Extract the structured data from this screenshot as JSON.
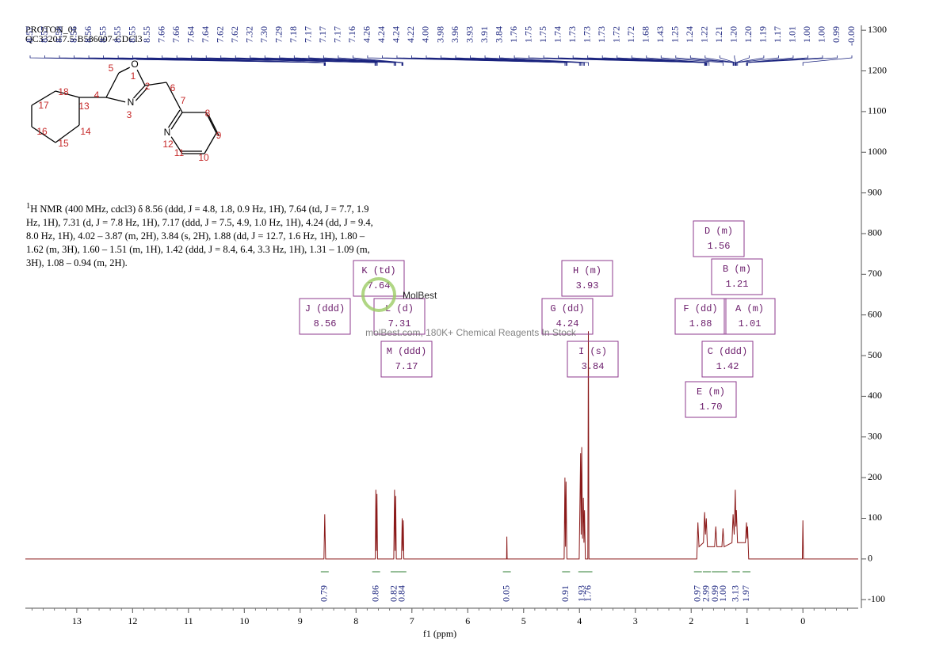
{
  "header": {
    "experiment": "PROTON_01",
    "sample": "QC332017.5-B586007-CDCl3"
  },
  "description": {
    "superscript": "1",
    "text": "H NMR (400 MHz, cdcl3) δ 8.56 (ddd, J = 4.8, 1.8, 0.9 Hz, 1H), 7.64 (td, J = 7.7, 1.9 Hz, 1H), 7.31 (d, J = 7.8 Hz, 1H), 7.17 (ddd, J = 7.5, 4.9, 1.0 Hz, 1H), 4.24 (dd, J = 9.4, 8.0 Hz, 1H), 4.02 – 3.87 (m, 2H), 3.84 (s, 2H), 1.88 (dd, J = 12.7, 1.6 Hz, 1H), 1.80 – 1.62 (m, 3H), 1.60 – 1.51 (m, 1H), 1.42 (ddd, J = 8.4, 6.4, 3.3 Hz, 1H), 1.31 – 1.09 (m, 3H), 1.08 – 0.94 (m, 2H)."
  },
  "watermark": {
    "brand": "MolBest",
    "tagline": "molBest.com, 180K+ Chemical Reagents In Stock"
  },
  "molecule": {
    "atoms": [
      "O",
      "N",
      "N"
    ],
    "numbers": [
      "1",
      "2",
      "3",
      "4",
      "5",
      "6",
      "7",
      "8",
      "9",
      "10",
      "11",
      "12",
      "13",
      "14",
      "15",
      "16",
      "17",
      "18"
    ]
  },
  "chart_data": {
    "type": "line",
    "x_label": "f1 (ppm)",
    "xlim": [
      13.92,
      -0.99
    ],
    "ylim": [
      -121,
      1312
    ],
    "xticks": [
      13,
      12,
      11,
      10,
      9,
      8,
      7,
      6,
      5,
      4,
      3,
      2,
      1,
      0
    ],
    "yticks": [
      -100,
      0,
      100,
      200,
      300,
      400,
      500,
      600,
      700,
      800,
      900,
      1000,
      1100,
      1200,
      1300
    ],
    "series": [
      {
        "color": "#8b1a1a",
        "x": [
          13.92,
          8.575,
          8.56,
          8.545,
          7.655,
          7.645,
          7.635,
          7.625,
          7.615,
          7.325,
          7.31,
          7.3,
          7.29,
          7.28,
          7.185,
          7.175,
          7.165,
          7.155,
          7.145,
          5.305,
          5.3,
          5.295,
          4.275,
          4.26,
          4.25,
          4.24,
          4.225,
          4.005,
          3.98,
          3.97,
          3.96,
          3.945,
          3.93,
          3.92,
          3.91,
          3.895,
          3.85,
          3.84,
          3.83,
          1.9,
          1.88,
          1.86,
          1.78,
          1.76,
          1.745,
          1.73,
          1.71,
          1.58,
          1.56,
          1.54,
          1.45,
          1.43,
          1.41,
          1.27,
          1.25,
          1.23,
          1.21,
          1.2,
          1.19,
          1.17,
          1.03,
          1.01,
          1.0,
          0.99,
          0.97,
          0.01,
          0,
          -0.01,
          -0.99
        ],
        "values": [
          0,
          0,
          110,
          0,
          0,
          170,
          20,
          160,
          0,
          0,
          170,
          20,
          155,
          0,
          0,
          100,
          20,
          95,
          0,
          0,
          55,
          0,
          0,
          200,
          30,
          190,
          0,
          0,
          260,
          60,
          275,
          50,
          150,
          40,
          120,
          0,
          0,
          560,
          0,
          0,
          90,
          30,
          40,
          115,
          60,
          100,
          30,
          30,
          80,
          30,
          30,
          75,
          30,
          40,
          110,
          60,
          170,
          80,
          120,
          40,
          40,
          90,
          50,
          80,
          0,
          0,
          95,
          0,
          0
        ]
      }
    ],
    "peak_labels": [
      "8.57",
      "8.57",
      "8.56",
      "8.56",
      "8.56",
      "8.55",
      "8.55",
      "8.55",
      "8.55",
      "7.66",
      "7.66",
      "7.64",
      "7.64",
      "7.62",
      "7.62",
      "7.32",
      "7.30",
      "7.29",
      "7.18",
      "7.17",
      "7.17",
      "7.17",
      "7.16",
      "4.26",
      "4.24",
      "4.24",
      "4.22",
      "4.00",
      "3.98",
      "3.96",
      "3.93",
      "3.91",
      "3.84",
      "1.76",
      "1.75",
      "1.75",
      "1.74",
      "1.73",
      "1.73",
      "1.73",
      "1.72",
      "1.72",
      "1.68",
      "1.43",
      "1.25",
      "1.24",
      "1.22",
      "1.21",
      "1.20",
      "1.20",
      "1.19",
      "1.17",
      "1.01",
      "1.00",
      "1.00",
      "0.99",
      "-0.00"
    ],
    "integrals": [
      {
        "ppm": 8.56,
        "label": "0.79"
      },
      {
        "ppm": 7.64,
        "label": "0.86"
      },
      {
        "ppm": 7.31,
        "label": "0.82"
      },
      {
        "ppm": 7.17,
        "label": "0.84"
      },
      {
        "ppm": 5.3,
        "label": "0.05"
      },
      {
        "ppm": 4.24,
        "label": "0.91"
      },
      {
        "ppm": 3.95,
        "label": "1.93"
      },
      {
        "ppm": 3.84,
        "label": "1.76"
      },
      {
        "ppm": 1.88,
        "label": "0.97"
      },
      {
        "ppm": 1.72,
        "label": "2.99"
      },
      {
        "ppm": 1.56,
        "label": "0.99"
      },
      {
        "ppm": 1.42,
        "label": "1.00"
      },
      {
        "ppm": 1.2,
        "label": "3.13"
      },
      {
        "ppm": 1.01,
        "label": "1.97"
      }
    ],
    "multiplets": [
      {
        "label": "J (ddd)",
        "shift": "8.56"
      },
      {
        "label": "K (td)",
        "shift": "7.64"
      },
      {
        "label": "L (d)",
        "shift": "7.31"
      },
      {
        "label": "M (ddd)",
        "shift": "7.17"
      },
      {
        "label": "H (m)",
        "shift": "3.93"
      },
      {
        "label": "G (dd)",
        "shift": "4.24"
      },
      {
        "label": "I (s)",
        "shift": "3.84"
      },
      {
        "label": "D (m)",
        "shift": "1.56"
      },
      {
        "label": "B (m)",
        "shift": "1.21"
      },
      {
        "label": "F (dd)",
        "shift": "1.88"
      },
      {
        "label": "A (m)",
        "shift": "1.01"
      },
      {
        "label": "C (ddd)",
        "shift": "1.42"
      },
      {
        "label": "E (m)",
        "shift": "1.70"
      }
    ]
  }
}
